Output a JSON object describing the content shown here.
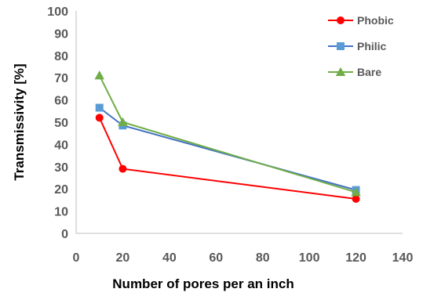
{
  "chart_data": {
    "type": "line",
    "title": "",
    "xlabel": "Number of pores per an inch",
    "ylabel": "Transmissivity [%]",
    "xlim": [
      0,
      140
    ],
    "ylim": [
      0,
      100
    ],
    "xticks": [
      "0",
      "20",
      "40",
      "60",
      "80",
      "100",
      "120",
      "140"
    ],
    "yticks": [
      "0",
      "10",
      "20",
      "30",
      "40",
      "50",
      "60",
      "70",
      "80",
      "90",
      "100"
    ],
    "grid": false,
    "legend_position": "top-right",
    "series": [
      {
        "name": "Phobic",
        "color": "#ff0000",
        "marker": "circle",
        "x": [
          10,
          20,
          120
        ],
        "y": [
          52,
          29,
          15.5
        ]
      },
      {
        "name": "Philic",
        "color": "#4472c4",
        "marker_color": "#5b9bd5",
        "marker": "square",
        "x": [
          10,
          20,
          120
        ],
        "y": [
          56.5,
          48.5,
          19.5
        ]
      },
      {
        "name": "Bare",
        "color": "#70ad47",
        "marker": "triangle",
        "x": [
          10,
          20,
          120
        ],
        "y": [
          71,
          50,
          18.5
        ]
      }
    ]
  }
}
